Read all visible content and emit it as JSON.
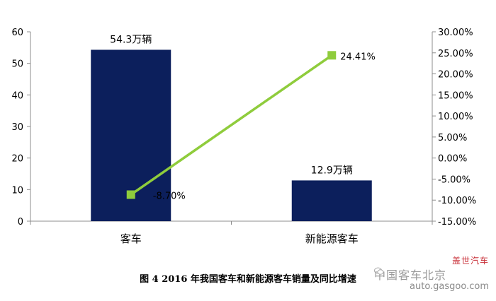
{
  "chart_data": {
    "type": "bar",
    "categories": [
      "客车",
      "新能源客车"
    ],
    "series": [
      {
        "values": [
          54.3,
          12.9
        ],
        "axis": "left",
        "data_labels": [
          "54.3万辆",
          "12.9万辆"
        ],
        "color": "#0c1f5c"
      },
      {
        "values": [
          -8.7,
          24.41
        ],
        "axis": "right",
        "data_labels": [
          "-8.70%",
          "24.41%"
        ],
        "type": "line",
        "color": "#8fcc3c"
      }
    ],
    "ylim": [
      0,
      60
    ],
    "y_ticks": [
      "0",
      "10",
      "20",
      "30",
      "40",
      "50",
      "60"
    ],
    "y2lim": [
      -15,
      30
    ],
    "y2_ticks": [
      "-15.00%",
      "-10.00%",
      "-5.00%",
      "0.00%",
      "5.00%",
      "10.00%",
      "15.00%",
      "20.00%",
      "25.00%",
      "30.00%"
    ],
    "grid": false,
    "legend": "none"
  },
  "caption": "图 4  2016 年我国客车和新能源客车销量及同比增速",
  "watermark": {
    "brand_cn": "盖世汽车",
    "text_mid": "中国客车北京",
    "url": "auto.gasgoo.com"
  }
}
